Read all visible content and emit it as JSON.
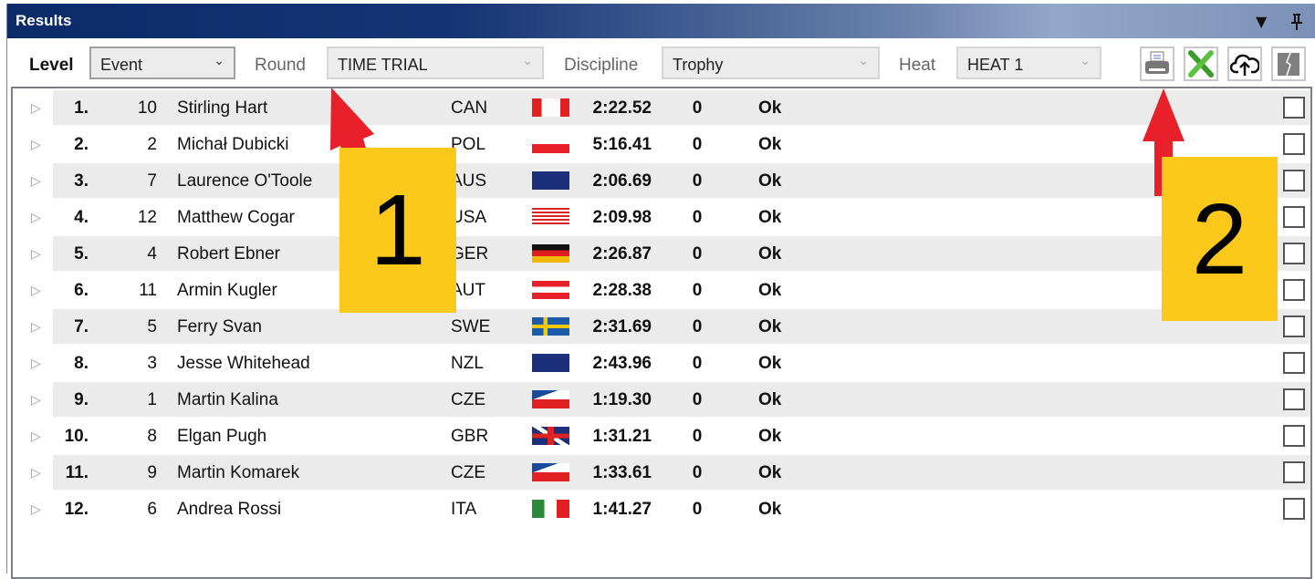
{
  "window": {
    "title": "Results"
  },
  "toolbar": {
    "level_label": "Level",
    "level_value": "Event",
    "round_label": "Round",
    "round_value": "TIME TRIAL",
    "discipline_label": "Discipline",
    "discipline_value": "Trophy",
    "heat_label": "Heat",
    "heat_value": "HEAT 1",
    "buttons": [
      "printer-icon",
      "excel-icon",
      "cloud-upload-icon",
      "broken-page-icon"
    ]
  },
  "rows": [
    {
      "rank": "1.",
      "bib": "10",
      "name": "Stirling Hart",
      "country": "CAN",
      "time": "2:22.52",
      "penalty": "0",
      "status": "Ok"
    },
    {
      "rank": "2.",
      "bib": "2",
      "name": "Michał Dubicki",
      "country": "POL",
      "time": "5:16.41",
      "penalty": "0",
      "status": "Ok"
    },
    {
      "rank": "3.",
      "bib": "7",
      "name": "Laurence O'Toole",
      "country": "AUS",
      "time": "2:06.69",
      "penalty": "0",
      "status": "Ok"
    },
    {
      "rank": "4.",
      "bib": "12",
      "name": "Matthew Cogar",
      "country": "USA",
      "time": "2:09.98",
      "penalty": "0",
      "status": "Ok"
    },
    {
      "rank": "5.",
      "bib": "4",
      "name": "Robert Ebner",
      "country": "GER",
      "time": "2:26.87",
      "penalty": "0",
      "status": "Ok"
    },
    {
      "rank": "6.",
      "bib": "11",
      "name": "Armin Kugler",
      "country": "AUT",
      "time": "2:28.38",
      "penalty": "0",
      "status": "Ok"
    },
    {
      "rank": "7.",
      "bib": "5",
      "name": "Ferry Svan",
      "country": "SWE",
      "time": "2:31.69",
      "penalty": "0",
      "status": "Ok"
    },
    {
      "rank": "8.",
      "bib": "3",
      "name": "Jesse Whitehead",
      "country": "NZL",
      "time": "2:43.96",
      "penalty": "0",
      "status": "Ok"
    },
    {
      "rank": "9.",
      "bib": "1",
      "name": "Martin Kalina",
      "country": "CZE",
      "time": "1:19.30",
      "penalty": "0",
      "status": "Ok"
    },
    {
      "rank": "10.",
      "bib": "8",
      "name": "Elgan Pugh",
      "country": "GBR",
      "time": "1:31.21",
      "penalty": "0",
      "status": "Ok"
    },
    {
      "rank": "11.",
      "bib": "9",
      "name": "Martin Komarek",
      "country": "CZE",
      "time": "1:33.61",
      "penalty": "0",
      "status": "Ok"
    },
    {
      "rank": "12.",
      "bib": "6",
      "name": "Andrea Rossi",
      "country": "ITA",
      "time": "1:41.27",
      "penalty": "0",
      "status": "Ok"
    }
  ],
  "annotations": {
    "label_1": "1",
    "label_2": "2",
    "arrow_color": "#e8202a",
    "label_color": "#fbc81b"
  }
}
